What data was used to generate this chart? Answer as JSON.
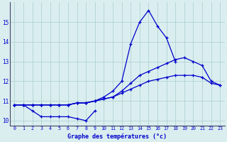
{
  "title": "Graphe des températures (°c)",
  "x_labels": [
    "0",
    "1",
    "2",
    "3",
    "4",
    "5",
    "6",
    "7",
    "8",
    "9",
    "10",
    "11",
    "12",
    "13",
    "14",
    "15",
    "16",
    "17",
    "18",
    "19",
    "20",
    "21",
    "22",
    "23"
  ],
  "x_values": [
    0,
    1,
    2,
    3,
    4,
    5,
    6,
    7,
    8,
    9,
    10,
    11,
    12,
    13,
    14,
    15,
    16,
    17,
    18,
    19,
    20,
    21,
    22,
    23
  ],
  "line_bottom": [
    10.8,
    10.8,
    10.5,
    10.2,
    10.2,
    10.2,
    10.2,
    10.1,
    10.0,
    10.5,
    null,
    null,
    null,
    null,
    null,
    null,
    null,
    null,
    null,
    null,
    null,
    null,
    null,
    null
  ],
  "line_flat1": [
    10.8,
    10.8,
    10.8,
    10.8,
    10.8,
    10.8,
    10.8,
    10.9,
    10.9,
    11.0,
    11.1,
    11.2,
    11.4,
    11.6,
    11.8,
    12.0,
    12.1,
    12.2,
    12.3,
    12.3,
    12.3,
    12.2,
    11.9,
    11.8
  ],
  "line_flat2": [
    10.8,
    10.8,
    10.8,
    10.8,
    10.8,
    10.8,
    10.8,
    10.9,
    10.9,
    11.0,
    11.1,
    11.2,
    11.5,
    11.9,
    12.3,
    12.5,
    12.7,
    12.9,
    13.1,
    13.2,
    13.0,
    12.8,
    12.0,
    11.8
  ],
  "line_peak": [
    10.8,
    10.8,
    10.8,
    10.8,
    10.8,
    10.8,
    10.8,
    10.9,
    10.9,
    11.0,
    11.2,
    11.5,
    12.0,
    13.9,
    15.0,
    15.6,
    14.8,
    14.2,
    13.0,
    null,
    null,
    null,
    null,
    null
  ],
  "ylim": [
    9.75,
    16.0
  ],
  "yticks": [
    10,
    11,
    12,
    13,
    14,
    15
  ],
  "line_color": "#0000cc",
  "bg_color": "#daeef0",
  "grid_color": "#aacccc"
}
